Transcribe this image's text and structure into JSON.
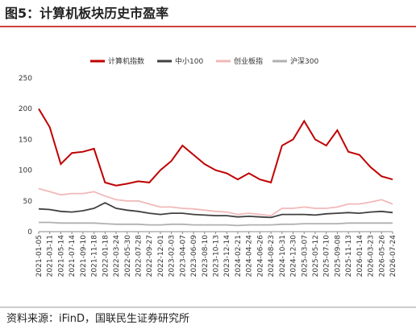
{
  "chart_data": {
    "type": "line",
    "title": "图5：计算机板块历史市盈率",
    "source": "资料来源：iFinD，国联民生证券研究所",
    "categories": [
      "2021-01-05",
      "2021-03-11",
      "2021-05-14",
      "2021-07-14",
      "2021-09-10",
      "2021-11-18",
      "2022-01-18",
      "2022-03-24",
      "2022-05-30",
      "2022-07-28",
      "2022-09-27",
      "2022-12-01",
      "2023-02-03",
      "2023-04-07",
      "2023-06-09",
      "2023-08-10",
      "2023-10-13",
      "2023-12-14",
      "2024-02-21",
      "2024-04-24",
      "2024-06-26",
      "2024-08-23",
      "2024-10-31",
      "2024-12-30",
      "2025-03-07",
      "2025-05-12",
      "2025-07-10",
      "2025-09-08",
      "2025-11-13",
      "2026-01-14",
      "2026-03-23",
      "2026-05-26",
      "2026-07-24"
    ],
    "series": [
      {
        "name": "计算机指数",
        "color": "#c00000",
        "values": [
          200,
          170,
          110,
          128,
          130,
          135,
          80,
          75,
          78,
          82,
          80,
          100,
          115,
          140,
          125,
          110,
          100,
          95,
          85,
          95,
          85,
          80,
          140,
          150,
          180,
          150,
          140,
          165,
          130,
          125,
          105,
          90,
          85
        ]
      },
      {
        "name": "中小100",
        "color": "#404040",
        "values": [
          37,
          36,
          33,
          32,
          34,
          38,
          47,
          38,
          35,
          33,
          30,
          28,
          30,
          30,
          28,
          27,
          26,
          26,
          24,
          25,
          24,
          23,
          28,
          28,
          28,
          27,
          29,
          30,
          31,
          30,
          32,
          33,
          31
        ]
      },
      {
        "name": "创业板指",
        "color": "#f2b8b8",
        "values": [
          70,
          65,
          60,
          62,
          62,
          65,
          58,
          52,
          50,
          50,
          45,
          40,
          40,
          38,
          37,
          35,
          33,
          32,
          28,
          30,
          28,
          26,
          38,
          38,
          40,
          38,
          38,
          40,
          45,
          45,
          48,
          52,
          45
        ]
      },
      {
        "name": "沪深300",
        "color": "#b0b0b0",
        "values": [
          15,
          15,
          14,
          14,
          14,
          14,
          13,
          12,
          12,
          12,
          11,
          11,
          12,
          12,
          11,
          11,
          11,
          11,
          10,
          11,
          11,
          11,
          12,
          12,
          13,
          13,
          13,
          13,
          14,
          14,
          14,
          14,
          14
        ]
      }
    ],
    "ylim": [
      0,
      250
    ],
    "yticks": [
      0,
      50,
      100,
      150,
      200,
      250
    ],
    "legend": "top"
  }
}
